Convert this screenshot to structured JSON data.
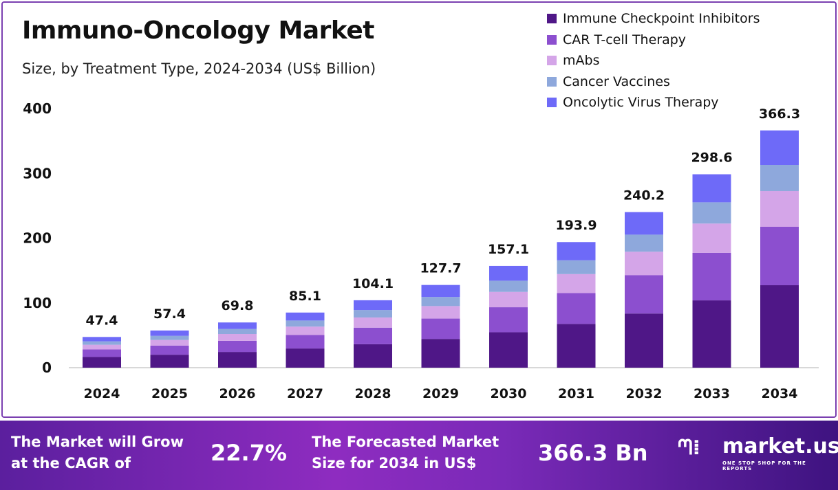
{
  "chart_data": {
    "type": "bar",
    "stacked": true,
    "title": "Immuno-Oncology Market",
    "subtitle": "Size, by Treatment Type, 2024-2034 (US$ Billion)",
    "categories": [
      "2024",
      "2025",
      "2026",
      "2027",
      "2028",
      "2029",
      "2030",
      "2031",
      "2032",
      "2033",
      "2034"
    ],
    "ylim": [
      0,
      400
    ],
    "yticks": [
      0,
      100,
      200,
      300,
      400
    ],
    "grid": false,
    "legend_position": "top-right",
    "totals": [
      47.4,
      57.4,
      69.8,
      85.1,
      104.1,
      127.7,
      157.1,
      193.9,
      240.2,
      298.6,
      366.3
    ],
    "series": [
      {
        "name": "Immune Checkpoint Inhibitors",
        "color": "#4f1787",
        "values": [
          16.5,
          20.0,
          24.3,
          29.6,
          36.2,
          44.4,
          54.7,
          67.5,
          83.6,
          103.9,
          127.3
        ]
      },
      {
        "name": "CAR T-cell Therapy",
        "color": "#8c4fcf",
        "values": [
          11.7,
          14.1,
          17.2,
          20.9,
          25.6,
          31.4,
          38.6,
          47.7,
          59.1,
          73.5,
          90.2
        ]
      },
      {
        "name": "mAbs",
        "color": "#d4a5e8",
        "values": [
          7.2,
          8.7,
          10.5,
          12.9,
          15.7,
          19.3,
          23.7,
          29.3,
          36.3,
          45.1,
          55.2
        ]
      },
      {
        "name": "Cancer Vaccines",
        "color": "#8ea8dc",
        "values": [
          5.2,
          6.3,
          7.7,
          9.4,
          11.5,
          14.0,
          17.3,
          21.3,
          26.4,
          32.8,
          40.3
        ]
      },
      {
        "name": "Oncolytic Virus Therapy",
        "color": "#6e6af8",
        "values": [
          6.8,
          8.3,
          10.1,
          12.3,
          15.1,
          18.6,
          22.8,
          28.1,
          34.8,
          43.3,
          53.3
        ]
      }
    ]
  },
  "footer": {
    "cagr_label_1": "The Market will Grow",
    "cagr_label_2": "at the CAGR of",
    "cagr": "22.7%",
    "size_label_1": "The Forecasted Market",
    "size_label_2": "Size for 2034 in US$",
    "size": "366.3 Bn",
    "brand": "market.us",
    "tagline": "ONE STOP SHOP FOR THE REPORTS"
  }
}
